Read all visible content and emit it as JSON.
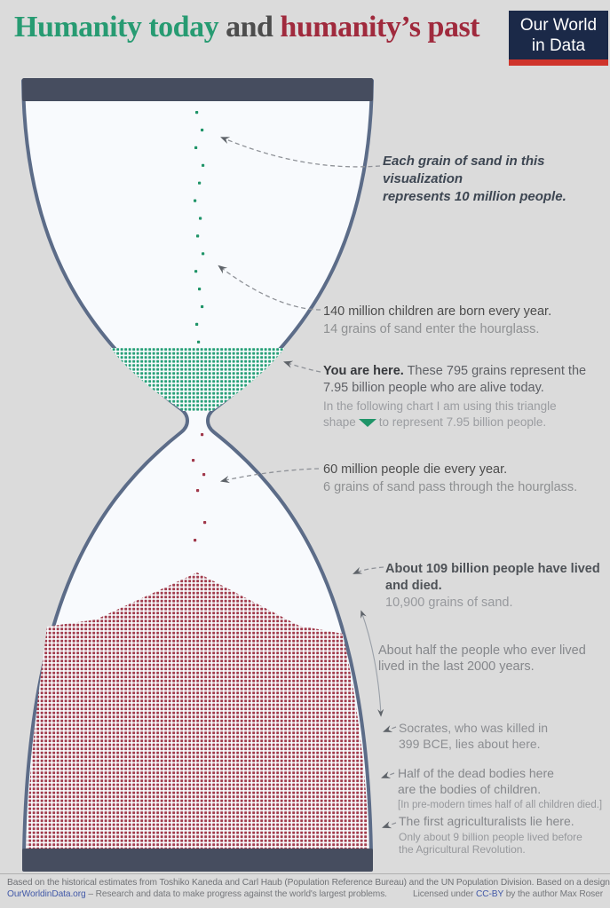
{
  "title": {
    "green": "Humanity today",
    "mid": " and ",
    "red": "humanity’s past"
  },
  "logo": {
    "line1": "Our World",
    "line2": "in Data"
  },
  "annotations": {
    "grain_note": {
      "line1": "Each grain of sand in this visualization",
      "line2": "represents 10 million people."
    },
    "births": {
      "line1": "140 million children are born every year.",
      "line2": "14 grains of sand enter the hourglass."
    },
    "you_are_here": {
      "bold": "You are here.",
      "line1_rest": " These 795 grains represent the",
      "line2": "7.95 billion people who are alive today.",
      "sub_line1": "In the following chart I am using this triangle",
      "sub_line2_pre": "shape",
      "sub_line2_post": "to represent 7.95 billion people."
    },
    "deaths": {
      "line1": "60 million people die every year.",
      "line2": "6 grains of sand pass through the hourglass."
    },
    "lived_and_died": {
      "line1": "About 109 billion people have lived and died.",
      "line2": "10,900 grains of sand."
    },
    "last_2000_years": {
      "line1": "About half the people who ever lived",
      "line2": "lived in the last 2000 years."
    },
    "socrates": {
      "line1": "Socrates, who was killed in",
      "line2": "399 BCE, lies about here."
    },
    "children_deaths": {
      "line1": "Half of the dead bodies here",
      "line2": "are the bodies of children.",
      "line3": "[In pre-modern times half of all children died.]"
    },
    "agriculturalists": {
      "line1": "The first agriculturalists lie here.",
      "line2": "Only about 9 billion people lived before",
      "line3": "the Agricultural Revolution."
    }
  },
  "footer": {
    "line1": "Based on the historical estimates from Toshiko Kaneda and Carl Haub (Population Reference Bureau) and the UN Population Division. Based on a design by Oliver Uberti.",
    "link": "OurWorldinData.org",
    "line2_rest": " – Research and data to make progress against the world's largest problems.",
    "license_pre": "Licensed under ",
    "license_link": "CC-BY",
    "license_post": " by the author Max Roser"
  },
  "colors": {
    "grain_green": "#27a078",
    "grain_red": "#a23c4d",
    "title_green": "#279b72",
    "title_red": "#a02a3d",
    "glass_stroke": "#5c6c88",
    "cap": "#464d5f",
    "logo_navy": "#1b2948",
    "logo_red": "#cf342b",
    "background": "#dbdbdb"
  },
  "chart_data": {
    "type": "pictogram",
    "title": "Humanity today and humanity's past",
    "people_per_grain": 10000000,
    "series": [
      {
        "name": "People alive today",
        "grains": 795,
        "people": 7950000000,
        "color": "green"
      },
      {
        "name": "People who have lived and died",
        "grains": 10900,
        "people": 109000000000,
        "color": "red"
      },
      {
        "name": "Children born every year (grains entering)",
        "grains": 14,
        "people": 140000000,
        "color": "green"
      },
      {
        "name": "People who die every year (grains passing)",
        "grains": 6,
        "people": 60000000,
        "color": "red"
      }
    ],
    "annotations": [
      "Each grain of sand represents 10 million people.",
      "About half the people who ever lived lived in the last 2000 years.",
      "Socrates, who was killed in 399 BCE, lies about here.",
      "Half of the dead bodies here are the bodies of children.",
      "The first agriculturalists lie here; only about 9 billion people lived before the Agricultural Revolution."
    ]
  }
}
